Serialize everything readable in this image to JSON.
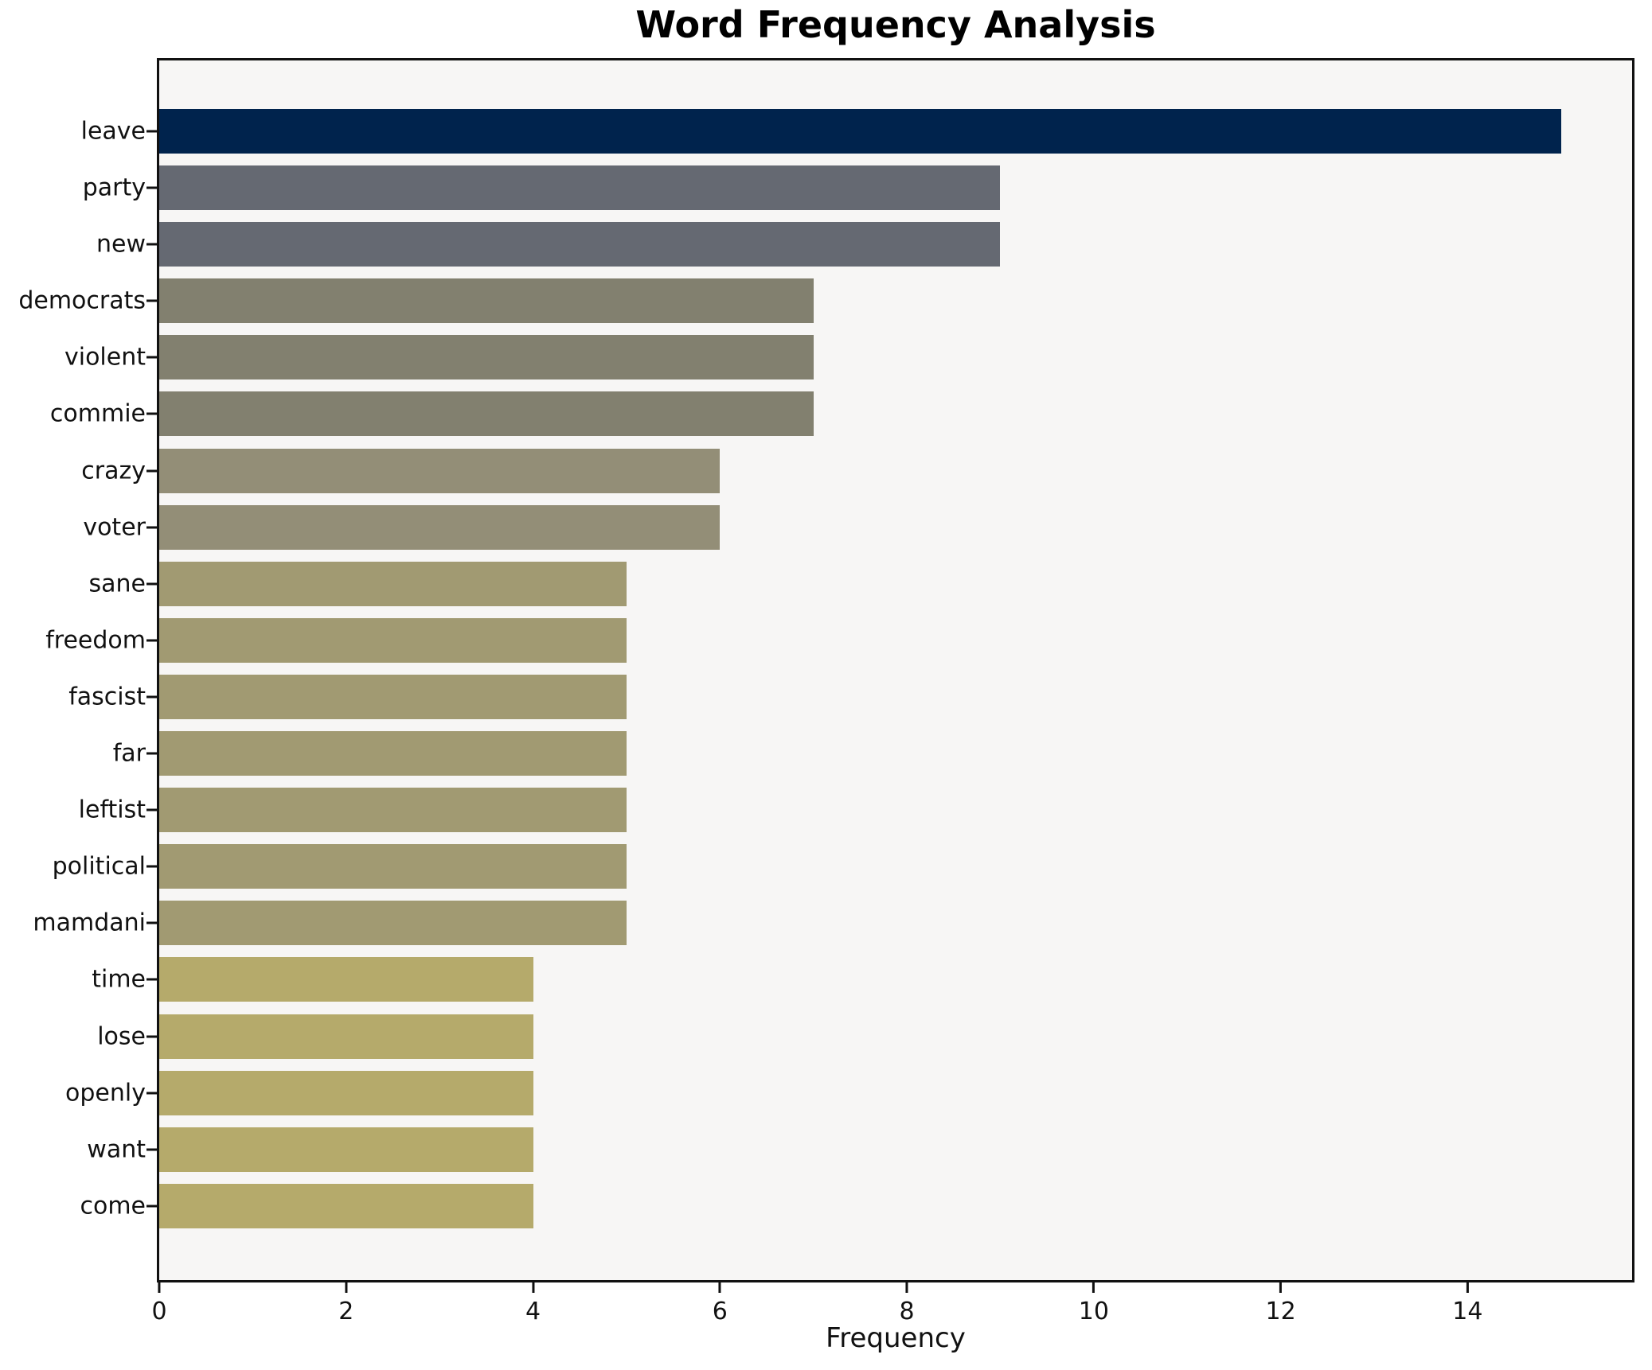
{
  "title": "Word Frequency Analysis",
  "xlabel": "Frequency",
  "chart_data": {
    "type": "bar",
    "orientation": "horizontal",
    "title": "Word Frequency Analysis",
    "xlabel": "Frequency",
    "ylabel": "",
    "categories": [
      "leave",
      "party",
      "new",
      "democrats",
      "violent",
      "commie",
      "crazy",
      "voter",
      "sane",
      "freedom",
      "fascist",
      "far",
      "leftist",
      "political",
      "mamdani",
      "time",
      "lose",
      "openly",
      "want",
      "come"
    ],
    "values": [
      15,
      9,
      9,
      7,
      7,
      7,
      6,
      6,
      5,
      5,
      5,
      5,
      5,
      5,
      5,
      4,
      4,
      4,
      4,
      4
    ],
    "bar_colors": [
      "#00234d",
      "#656972",
      "#656972",
      "#82806f",
      "#82806f",
      "#82806f",
      "#938e77",
      "#938e77",
      "#a19a72",
      "#a19a72",
      "#a19a72",
      "#a19a72",
      "#a19a72",
      "#a19a72",
      "#a19a72",
      "#b5aa6b",
      "#b5aa6b",
      "#b5aa6b",
      "#b5aa6b",
      "#b5aa6b"
    ],
    "xlim": [
      0,
      15.76
    ],
    "xticks": [
      0,
      2,
      4,
      6,
      8,
      10,
      12,
      14
    ],
    "grid": false,
    "legend": null,
    "plot_background": "#f7f6f5",
    "spine_color": "#111111"
  }
}
